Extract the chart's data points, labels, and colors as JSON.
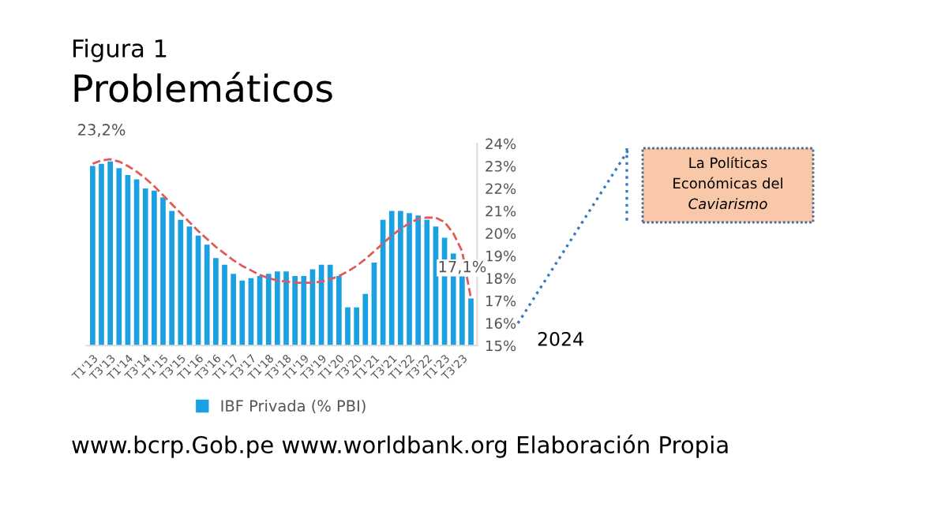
{
  "chart_data": {
    "type": "bar",
    "title": "Figura 1",
    "subtitle": "Problemáticos",
    "categories": [
      "T1'13",
      null,
      "T3'13",
      null,
      "T1'14",
      null,
      "T3'14",
      null,
      "T1'15",
      null,
      "T3'15",
      null,
      "T1'16",
      null,
      "T3'16",
      null,
      "T1'17",
      null,
      "T3'17",
      null,
      "T1'18",
      null,
      "T3'18",
      null,
      "T1'19",
      null,
      "T3'19",
      null,
      "T1'20",
      null,
      "T3'20",
      null,
      "T1'21",
      null,
      "T3'21",
      null,
      "T1'22",
      null,
      "T3'22",
      null,
      "T1'23",
      null,
      "T3'23",
      null
    ],
    "series": [
      {
        "name": "IBF Privada (% PBI)",
        "color": "#1ba1e2",
        "values": [
          23.0,
          23.1,
          23.2,
          22.9,
          22.6,
          22.4,
          22.0,
          21.9,
          21.6,
          21.0,
          20.6,
          20.3,
          19.9,
          19.5,
          18.9,
          18.6,
          18.2,
          17.9,
          18.0,
          18.1,
          18.2,
          18.3,
          18.3,
          18.1,
          18.1,
          18.4,
          18.6,
          18.6,
          18.1,
          16.7,
          16.7,
          17.3,
          18.7,
          20.6,
          21.0,
          21.0,
          20.9,
          20.8,
          20.6,
          20.3,
          19.8,
          19.1,
          18.1,
          17.1
        ],
        "value_labels": [
          null,
          null,
          "23,2%",
          null,
          null,
          null,
          null,
          null,
          null,
          null,
          null,
          null,
          null,
          null,
          null,
          null,
          null,
          null,
          null,
          null,
          null,
          null,
          null,
          null,
          null,
          null,
          null,
          null,
          null,
          null,
          null,
          null,
          null,
          null,
          null,
          null,
          null,
          null,
          null,
          null,
          null,
          null,
          null,
          "17,1%"
        ]
      },
      {
        "color": "#e05a5a",
        "type": "line",
        "line_style": "dashed",
        "values": [
          23.1,
          23.25,
          23.3,
          23.2,
          23.0,
          22.75,
          22.45,
          22.1,
          21.7,
          21.3,
          20.9,
          20.5,
          20.1,
          19.75,
          19.4,
          19.1,
          18.8,
          18.55,
          18.35,
          18.15,
          18.0,
          17.9,
          17.85,
          17.8,
          17.8,
          17.8,
          17.85,
          17.95,
          18.1,
          18.3,
          18.55,
          18.85,
          19.2,
          19.55,
          19.9,
          20.2,
          20.45,
          20.65,
          20.7,
          20.7,
          20.5,
          20.0,
          19.2,
          17.1
        ]
      }
    ],
    "ylim": [
      15,
      24
    ],
    "yticks": [
      {
        "value": 15,
        "label": "15%"
      },
      {
        "value": 16,
        "label": "16%"
      },
      {
        "value": 17,
        "label": "17%"
      },
      {
        "value": 18,
        "label": "18%"
      },
      {
        "value": 19,
        "label": "19%"
      },
      {
        "value": 20,
        "label": "20%"
      },
      {
        "value": 21,
        "label": "21%"
      },
      {
        "value": 22,
        "label": "22%"
      },
      {
        "value": 23,
        "label": "23%"
      },
      {
        "value": 24,
        "label": "24%"
      }
    ],
    "grid": false,
    "legend": "bottom",
    "annotations": [
      "La Políticas\nEconómicas del\nCaviarismo",
      "2024",
      "www.bcrp.Gob.pe www.worldbank.org Elaboración Propia"
    ]
  }
}
